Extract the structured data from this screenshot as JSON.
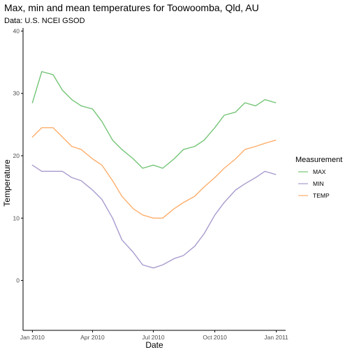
{
  "chart_data": {
    "type": "line",
    "title": "Max, min and mean temperatures for Toowoomba, Qld, AU",
    "subtitle": "Data: U.S. NCEI GSOD",
    "xlabel": "Date",
    "ylabel": "Temperature",
    "x_range": [
      "2009-12-18",
      "2011-01-15"
    ],
    "ylim": [
      -8.0,
      40.5
    ],
    "x_ticks": [
      {
        "date": "2010-01-01",
        "label": "Jan 2010"
      },
      {
        "date": "2010-04-01",
        "label": "Apr 2010"
      },
      {
        "date": "2010-07-01",
        "label": "Jul 2010"
      },
      {
        "date": "2010-10-01",
        "label": "Oct 2010"
      },
      {
        "date": "2011-01-01",
        "label": "Jan 2011"
      }
    ],
    "y_ticks": [
      0,
      10,
      20,
      30,
      40
    ],
    "grid": false,
    "legend": {
      "title": "Measurement",
      "position": "right"
    },
    "series": [
      {
        "name": "MAX",
        "color": "#74c476",
        "x": [
          "2010-01-01",
          "2010-01-15",
          "2010-02-01",
          "2010-02-15",
          "2010-03-01",
          "2010-03-15",
          "2010-04-01",
          "2010-04-15",
          "2010-05-01",
          "2010-05-15",
          "2010-06-01",
          "2010-06-15",
          "2010-07-01",
          "2010-07-15",
          "2010-08-01",
          "2010-08-15",
          "2010-09-01",
          "2010-09-15",
          "2010-10-01",
          "2010-10-15",
          "2010-11-01",
          "2010-11-15",
          "2010-12-01",
          "2010-12-15",
          "2010-12-31"
        ],
        "values": [
          28.5,
          33.5,
          33.0,
          30.5,
          29.0,
          28.0,
          27.5,
          25.5,
          22.5,
          21.0,
          19.5,
          18.0,
          18.5,
          18.0,
          19.5,
          21.0,
          21.5,
          22.5,
          24.5,
          26.5,
          27.0,
          28.5,
          28.0,
          29.0,
          28.5
        ]
      },
      {
        "name": "MIN",
        "color": "#a99bce",
        "x": [
          "2010-01-01",
          "2010-01-15",
          "2010-02-01",
          "2010-02-15",
          "2010-03-01",
          "2010-03-15",
          "2010-04-01",
          "2010-04-15",
          "2010-05-01",
          "2010-05-15",
          "2010-06-01",
          "2010-06-15",
          "2010-07-01",
          "2010-07-15",
          "2010-08-01",
          "2010-08-15",
          "2010-09-01",
          "2010-09-15",
          "2010-10-01",
          "2010-10-15",
          "2010-11-01",
          "2010-11-15",
          "2010-12-01",
          "2010-12-15",
          "2010-12-31"
        ],
        "values": [
          18.5,
          17.5,
          17.5,
          17.5,
          16.5,
          16.0,
          14.5,
          13.0,
          10.0,
          6.5,
          4.5,
          2.5,
          2.0,
          2.5,
          3.5,
          4.0,
          5.5,
          7.5,
          10.5,
          12.5,
          14.5,
          15.5,
          16.5,
          17.5,
          17.0
        ]
      },
      {
        "name": "TEMP",
        "color": "#fdae6b",
        "x": [
          "2010-01-01",
          "2010-01-15",
          "2010-02-01",
          "2010-02-15",
          "2010-03-01",
          "2010-03-15",
          "2010-04-01",
          "2010-04-15",
          "2010-05-01",
          "2010-05-15",
          "2010-06-01",
          "2010-06-15",
          "2010-07-01",
          "2010-07-15",
          "2010-08-01",
          "2010-08-15",
          "2010-09-01",
          "2010-09-15",
          "2010-10-01",
          "2010-10-15",
          "2010-11-01",
          "2010-11-15",
          "2010-12-01",
          "2010-12-15",
          "2010-12-31"
        ],
        "values": [
          23.0,
          24.5,
          24.5,
          23.0,
          21.5,
          21.0,
          19.5,
          18.5,
          16.0,
          13.5,
          11.5,
          10.5,
          10.0,
          10.0,
          11.5,
          12.5,
          13.5,
          15.0,
          16.5,
          18.0,
          19.5,
          21.0,
          21.5,
          22.0,
          22.5
        ]
      }
    ]
  }
}
